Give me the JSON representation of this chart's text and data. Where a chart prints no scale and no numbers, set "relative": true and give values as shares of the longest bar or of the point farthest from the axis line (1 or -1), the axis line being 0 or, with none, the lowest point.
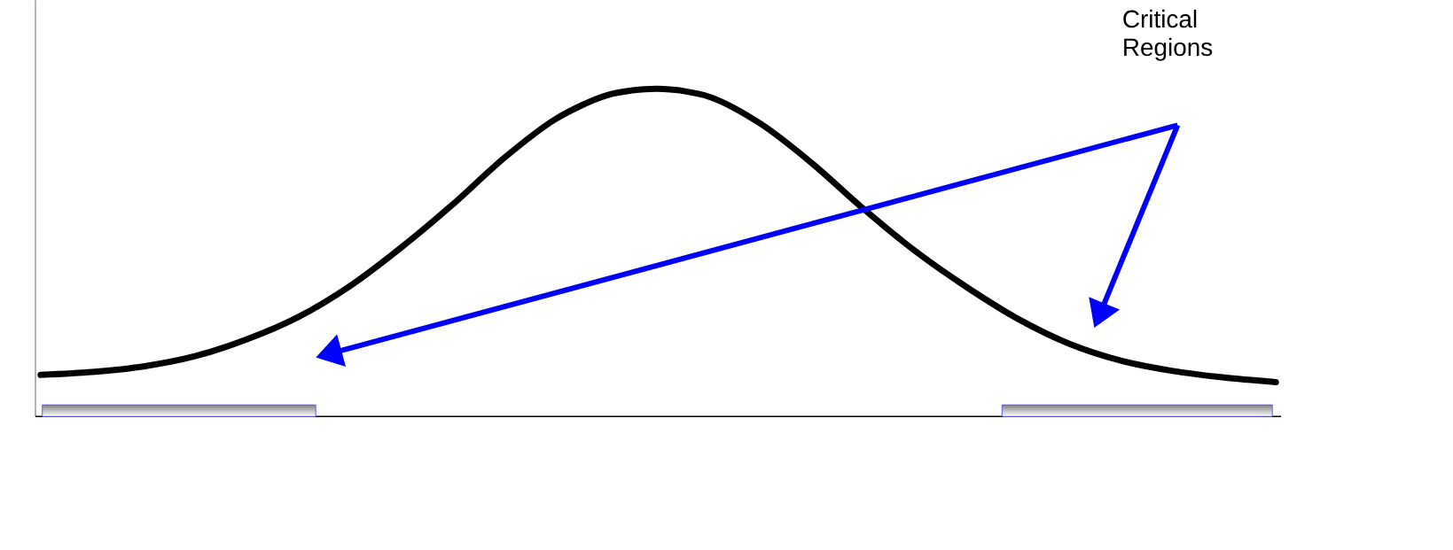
{
  "chart_data": {
    "type": "line",
    "relative": true,
    "categories": [
      null,
      null,
      null,
      null,
      null,
      null,
      null,
      null,
      null,
      null,
      null,
      null,
      null,
      null,
      null,
      null,
      null,
      null,
      null,
      null,
      null,
      null,
      null,
      null,
      null
    ],
    "series": [
      {
        "color": "#000000",
        "values": [
          0.127,
          0.136,
          0.153,
          0.184,
          0.235,
          0.303,
          0.397,
          0.515,
          0.646,
          0.788,
          0.907,
          0.98,
          1.0,
          0.975,
          0.892,
          0.771,
          0.632,
          0.504,
          0.394,
          0.297,
          0.221,
          0.17,
          0.139,
          0.119,
          0.105
        ]
      }
    ],
    "annotations": [
      "Critical Regions"
    ],
    "marker": "none",
    "line_style": "solid"
  }
}
